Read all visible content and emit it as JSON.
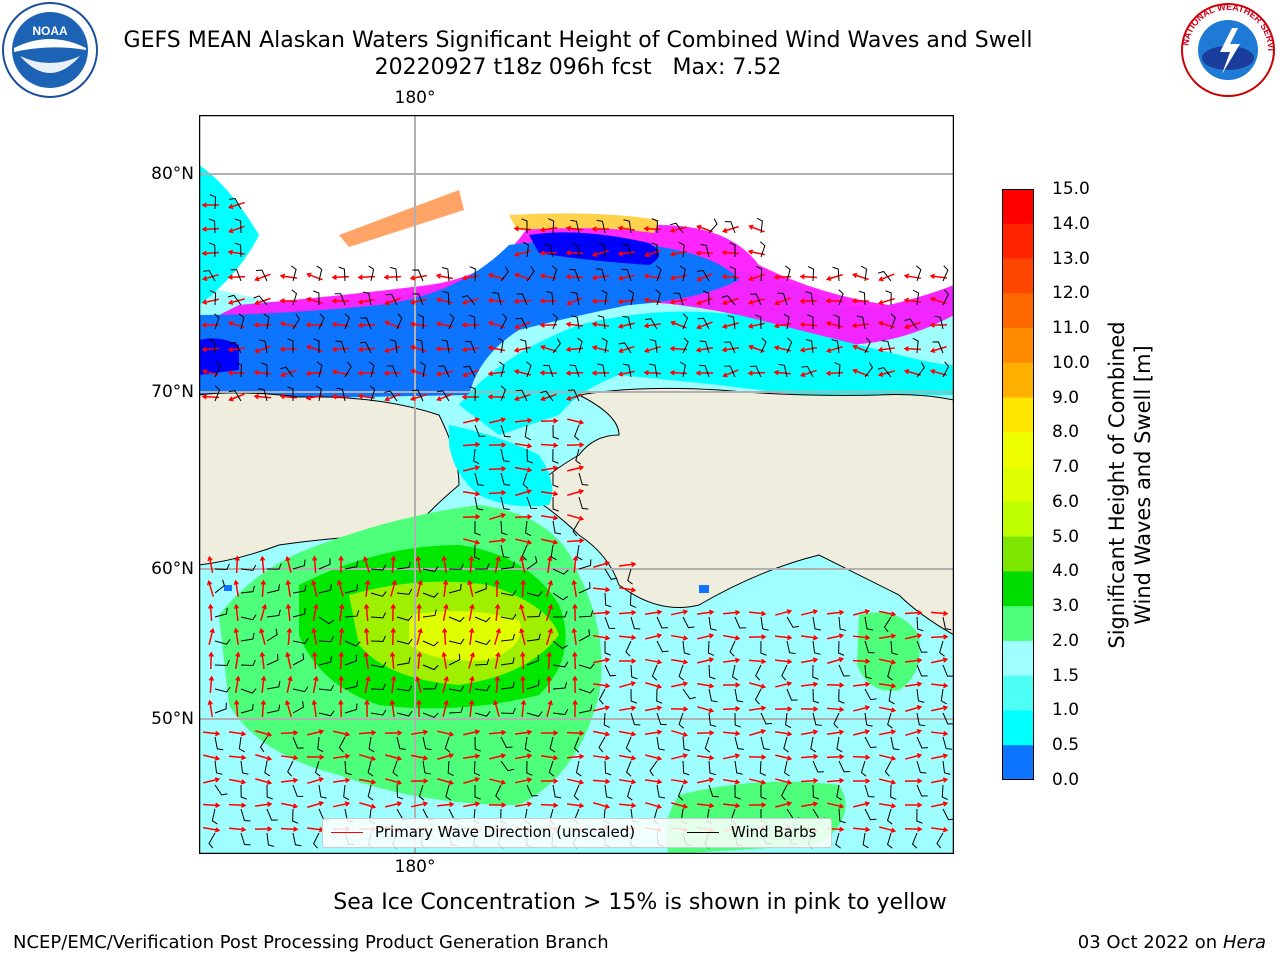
{
  "title_line1": "GEFS MEAN Alaskan Waters Significant Height of Combined Wind Waves and Swell",
  "title_line2": "20220927 t18z 096h fcst   Max: 7.52",
  "map": {
    "lat_labels": [
      "80°N",
      "70°N",
      "60°N",
      "50°N"
    ],
    "lon_label_top": "180°",
    "lon_label_bottom": "180°",
    "land_color": "#efedde",
    "ocean_fill_colors": {
      "very_low": "#0000ff",
      "low": "#0d74ff",
      "mid": "#00ffff",
      "light": "#9ffeff",
      "green_light": "#4dff7a",
      "green": "#00e800",
      "green_yellow": "#9fef00",
      "yellow": "#dfff00"
    },
    "sea_ice_colors": [
      "#ff00ff",
      "#ff66ee",
      "#ffa366",
      "#ffd24d"
    ],
    "wave_arrow_color": "#ff0000",
    "wind_barb_color": "#000000"
  },
  "legend": {
    "wave_label": "Primary Wave Direction (unscaled)",
    "barb_label": "Wind Barbs"
  },
  "colorbar": {
    "ticks": [
      "15.0",
      "14.0",
      "13.0",
      "12.0",
      "11.0",
      "10.0",
      "9.0",
      "8.0",
      "7.0",
      "6.0",
      "5.0",
      "4.0",
      "3.0",
      "2.0",
      "1.5",
      "1.0",
      "0.5",
      "0.0"
    ],
    "colors_top_to_bottom": [
      "#ff0000",
      "#ff2300",
      "#ff4600",
      "#ff6900",
      "#ff8c00",
      "#ffaf00",
      "#ffe600",
      "#f0ff00",
      "#dfff00",
      "#c0ff00",
      "#7de600",
      "#00dc00",
      "#4dff7a",
      "#9ffeff",
      "#4dfff5",
      "#00ffff",
      "#0d74ff",
      "#0000ff"
    ],
    "axis_label_line1": "Significant Height of Combined",
    "axis_label_line2": "Wind Waves and Swell [m]"
  },
  "caption": "Sea Ice Concentration > 15% is shown in pink to yellow",
  "footer_left": "NCEP/EMC/Verification Post Processing Product Generation Branch",
  "footer_right_date": "03 Oct 2022 on",
  "footer_right_host": "Hera",
  "logos": {
    "noaa_text": "NOAA",
    "nws_ring_text": "NATIONAL WEATHER SERVICE"
  }
}
